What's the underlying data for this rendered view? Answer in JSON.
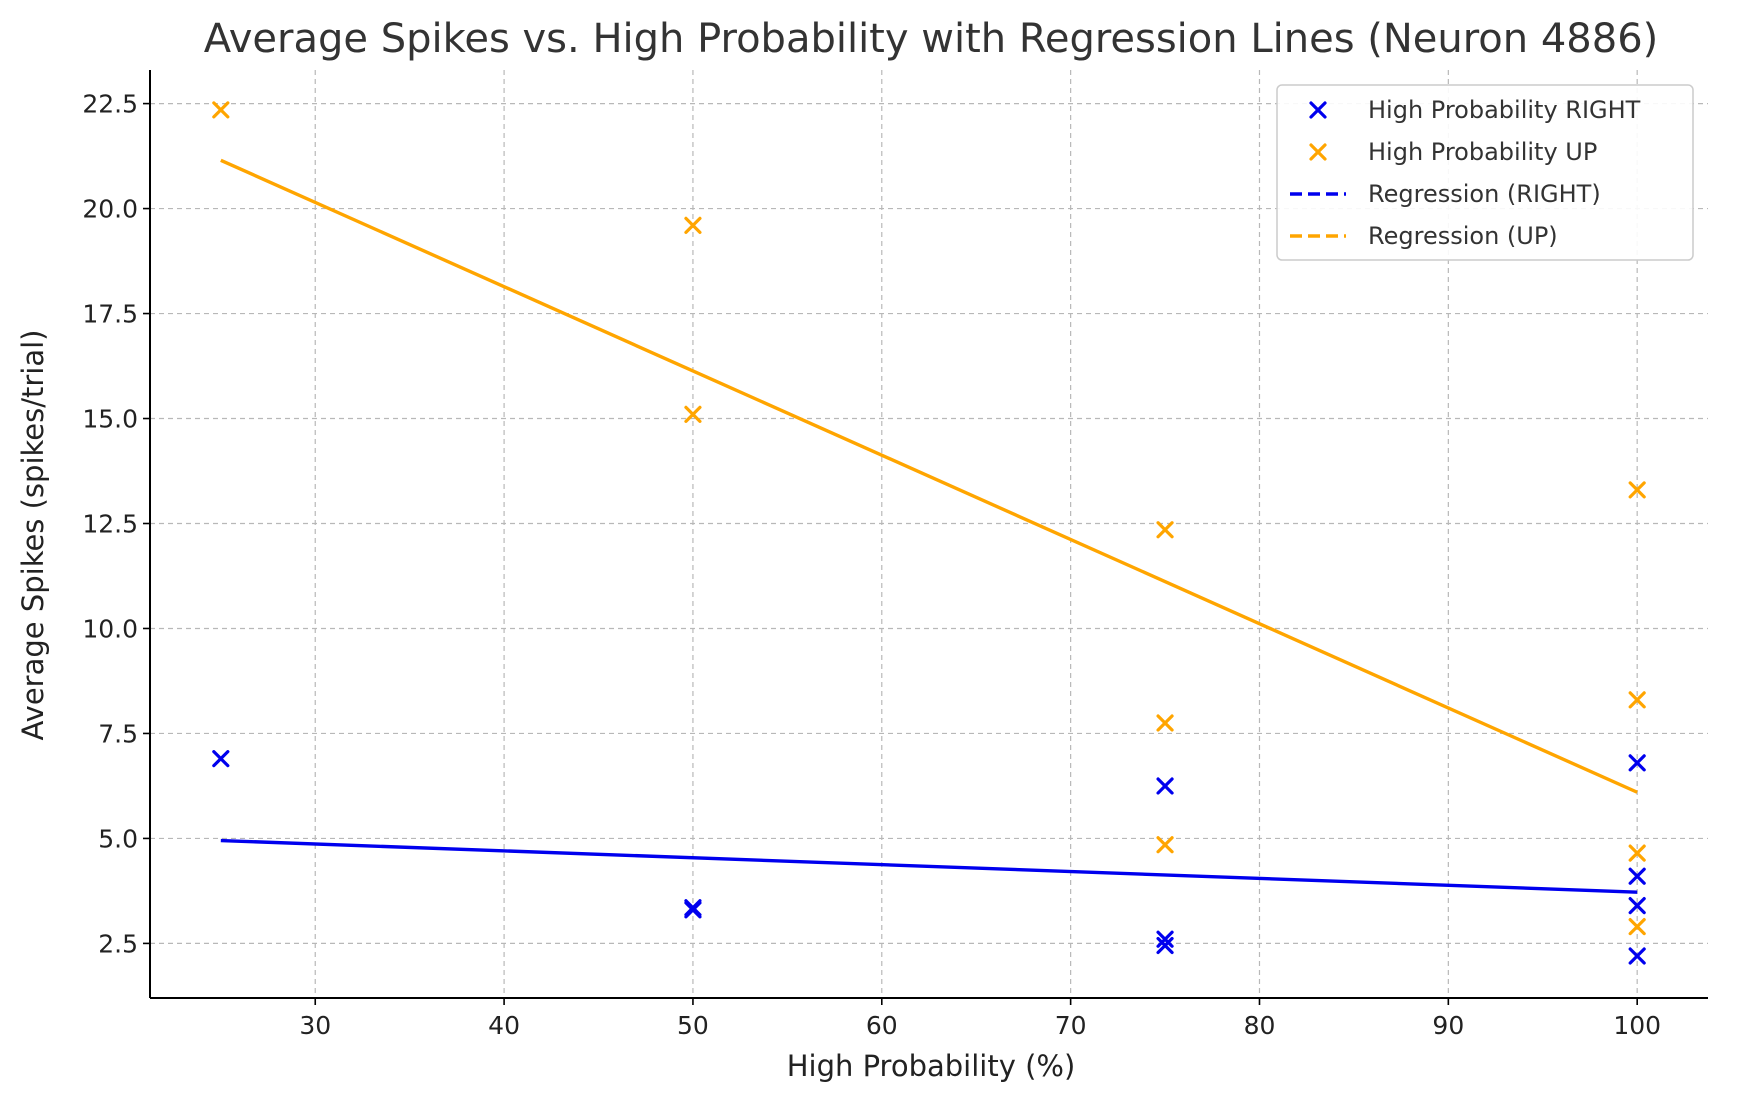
{
  "chart_data": {
    "type": "scatter",
    "title": "Average Spikes vs. High Probability with Regression Lines (Neuron 4886)",
    "xlabel": "High Probability (%)",
    "ylabel": "Average Spikes (spikes/trial)",
    "xlim": [
      21.25,
      103.75
    ],
    "ylim": [
      1.2,
      23.3
    ],
    "xticks": [
      30,
      40,
      50,
      60,
      70,
      80,
      90,
      100
    ],
    "yticks": [
      2.5,
      5.0,
      7.5,
      10.0,
      12.5,
      15.0,
      17.5,
      20.0,
      22.5
    ],
    "ytick_labels": [
      "2.5",
      "5.0",
      "7.5",
      "10.0",
      "12.5",
      "15.0",
      "17.5",
      "20.0",
      "22.5"
    ],
    "grid": true,
    "legend_position": "top-right",
    "series": [
      {
        "name": "High Probability RIGHT",
        "kind": "scatter",
        "marker": "x",
        "color": "#0000ee",
        "points": [
          [
            25,
            6.9
          ],
          [
            50,
            3.3
          ],
          [
            50,
            3.35
          ],
          [
            75,
            6.25
          ],
          [
            75,
            2.6
          ],
          [
            75,
            2.45
          ],
          [
            100,
            6.8
          ],
          [
            100,
            4.1
          ],
          [
            100,
            3.4
          ],
          [
            100,
            2.2
          ]
        ]
      },
      {
        "name": "High Probability UP",
        "kind": "scatter",
        "marker": "x",
        "color": "#ffa500",
        "points": [
          [
            25,
            22.35
          ],
          [
            50,
            19.6
          ],
          [
            50,
            15.1
          ],
          [
            75,
            12.35
          ],
          [
            75,
            7.75
          ],
          [
            75,
            4.85
          ],
          [
            100,
            13.3
          ],
          [
            100,
            8.3
          ],
          [
            100,
            4.65
          ],
          [
            100,
            2.9
          ]
        ]
      },
      {
        "name": "Regression (RIGHT)",
        "kind": "line",
        "color": "#0000ee",
        "points": [
          [
            25,
            4.95
          ],
          [
            100,
            3.72
          ]
        ]
      },
      {
        "name": "Regression (UP)",
        "kind": "line",
        "color": "#ffa500",
        "points": [
          [
            25,
            21.15
          ],
          [
            100,
            6.1
          ]
        ]
      }
    ]
  }
}
